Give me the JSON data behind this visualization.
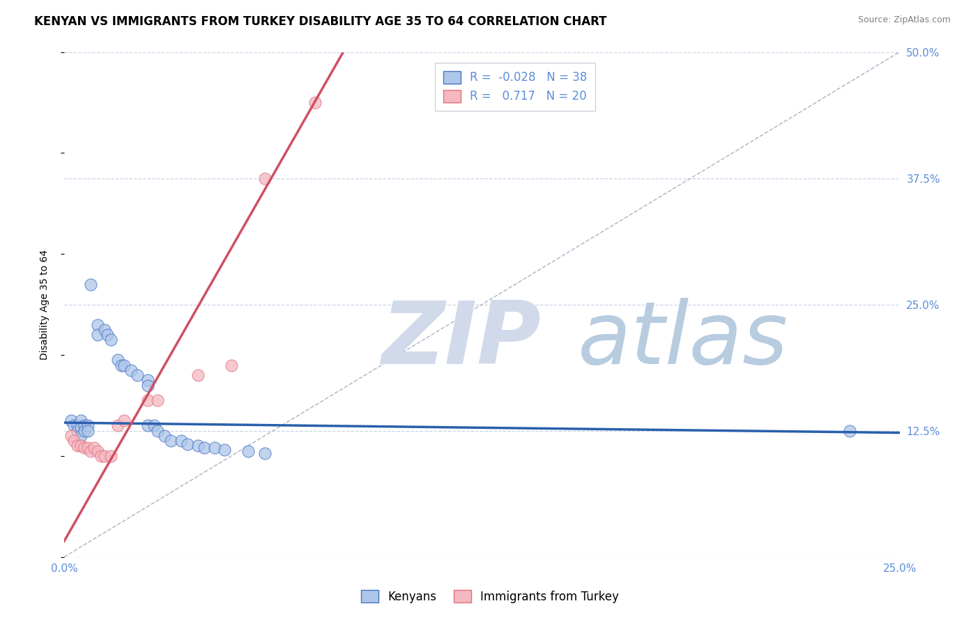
{
  "title": "KENYAN VS IMMIGRANTS FROM TURKEY DISABILITY AGE 35 TO 64 CORRELATION CHART",
  "source": "Source: ZipAtlas.com",
  "ylabel": "Disability Age 35 to 64",
  "x_min": 0.0,
  "x_max": 0.25,
  "y_min": 0.0,
  "y_max": 0.5,
  "x_tick_labels": [
    "0.0%",
    "25.0%"
  ],
  "y_ticks": [
    0.0,
    0.125,
    0.25,
    0.375,
    0.5
  ],
  "y_tick_labels": [
    "",
    "12.5%",
    "25.0%",
    "37.5%",
    "50.0%"
  ],
  "legend_entries": [
    {
      "label": "Kenyans",
      "color": "#aec6e8",
      "edge": "#4472c4",
      "R": -0.028,
      "N": 38
    },
    {
      "label": "Immigrants from Turkey",
      "color": "#f4b8c0",
      "edge": "#e07080",
      "R": 0.717,
      "N": 20
    }
  ],
  "blue_scatter": [
    [
      0.002,
      0.135
    ],
    [
      0.003,
      0.13
    ],
    [
      0.004,
      0.13
    ],
    [
      0.004,
      0.125
    ],
    [
      0.005,
      0.135
    ],
    [
      0.005,
      0.128
    ],
    [
      0.005,
      0.12
    ],
    [
      0.006,
      0.13
    ],
    [
      0.006,
      0.125
    ],
    [
      0.007,
      0.13
    ],
    [
      0.007,
      0.125
    ],
    [
      0.008,
      0.27
    ],
    [
      0.01,
      0.23
    ],
    [
      0.01,
      0.22
    ],
    [
      0.012,
      0.225
    ],
    [
      0.013,
      0.22
    ],
    [
      0.014,
      0.215
    ],
    [
      0.016,
      0.195
    ],
    [
      0.017,
      0.19
    ],
    [
      0.018,
      0.19
    ],
    [
      0.02,
      0.185
    ],
    [
      0.022,
      0.18
    ],
    [
      0.025,
      0.175
    ],
    [
      0.025,
      0.17
    ],
    [
      0.025,
      0.13
    ],
    [
      0.027,
      0.13
    ],
    [
      0.028,
      0.125
    ],
    [
      0.03,
      0.12
    ],
    [
      0.032,
      0.115
    ],
    [
      0.035,
      0.115
    ],
    [
      0.037,
      0.112
    ],
    [
      0.04,
      0.11
    ],
    [
      0.042,
      0.108
    ],
    [
      0.045,
      0.108
    ],
    [
      0.048,
      0.106
    ],
    [
      0.055,
      0.105
    ],
    [
      0.06,
      0.103
    ],
    [
      0.235,
      0.125
    ]
  ],
  "pink_scatter": [
    [
      0.002,
      0.12
    ],
    [
      0.003,
      0.115
    ],
    [
      0.004,
      0.11
    ],
    [
      0.005,
      0.11
    ],
    [
      0.006,
      0.108
    ],
    [
      0.007,
      0.108
    ],
    [
      0.008,
      0.105
    ],
    [
      0.009,
      0.108
    ],
    [
      0.01,
      0.105
    ],
    [
      0.011,
      0.1
    ],
    [
      0.012,
      0.1
    ],
    [
      0.014,
      0.1
    ],
    [
      0.016,
      0.13
    ],
    [
      0.018,
      0.135
    ],
    [
      0.025,
      0.155
    ],
    [
      0.028,
      0.155
    ],
    [
      0.04,
      0.18
    ],
    [
      0.05,
      0.19
    ],
    [
      0.06,
      0.375
    ],
    [
      0.075,
      0.45
    ]
  ],
  "blue_line_color": "#2a5fac",
  "pink_line_color": "#d05060",
  "ref_line_color": "#b0b8c8",
  "background_color": "#ffffff",
  "grid_color": "#c8d4e8",
  "watermark_zip": "ZIP",
  "watermark_atlas": "atlas",
  "watermark_color_zip": "#d0daea",
  "watermark_color_atlas": "#b8cce0",
  "title_fontsize": 12,
  "axis_label_fontsize": 10,
  "tick_fontsize": 11,
  "right_tick_color": "#5b8dd9"
}
